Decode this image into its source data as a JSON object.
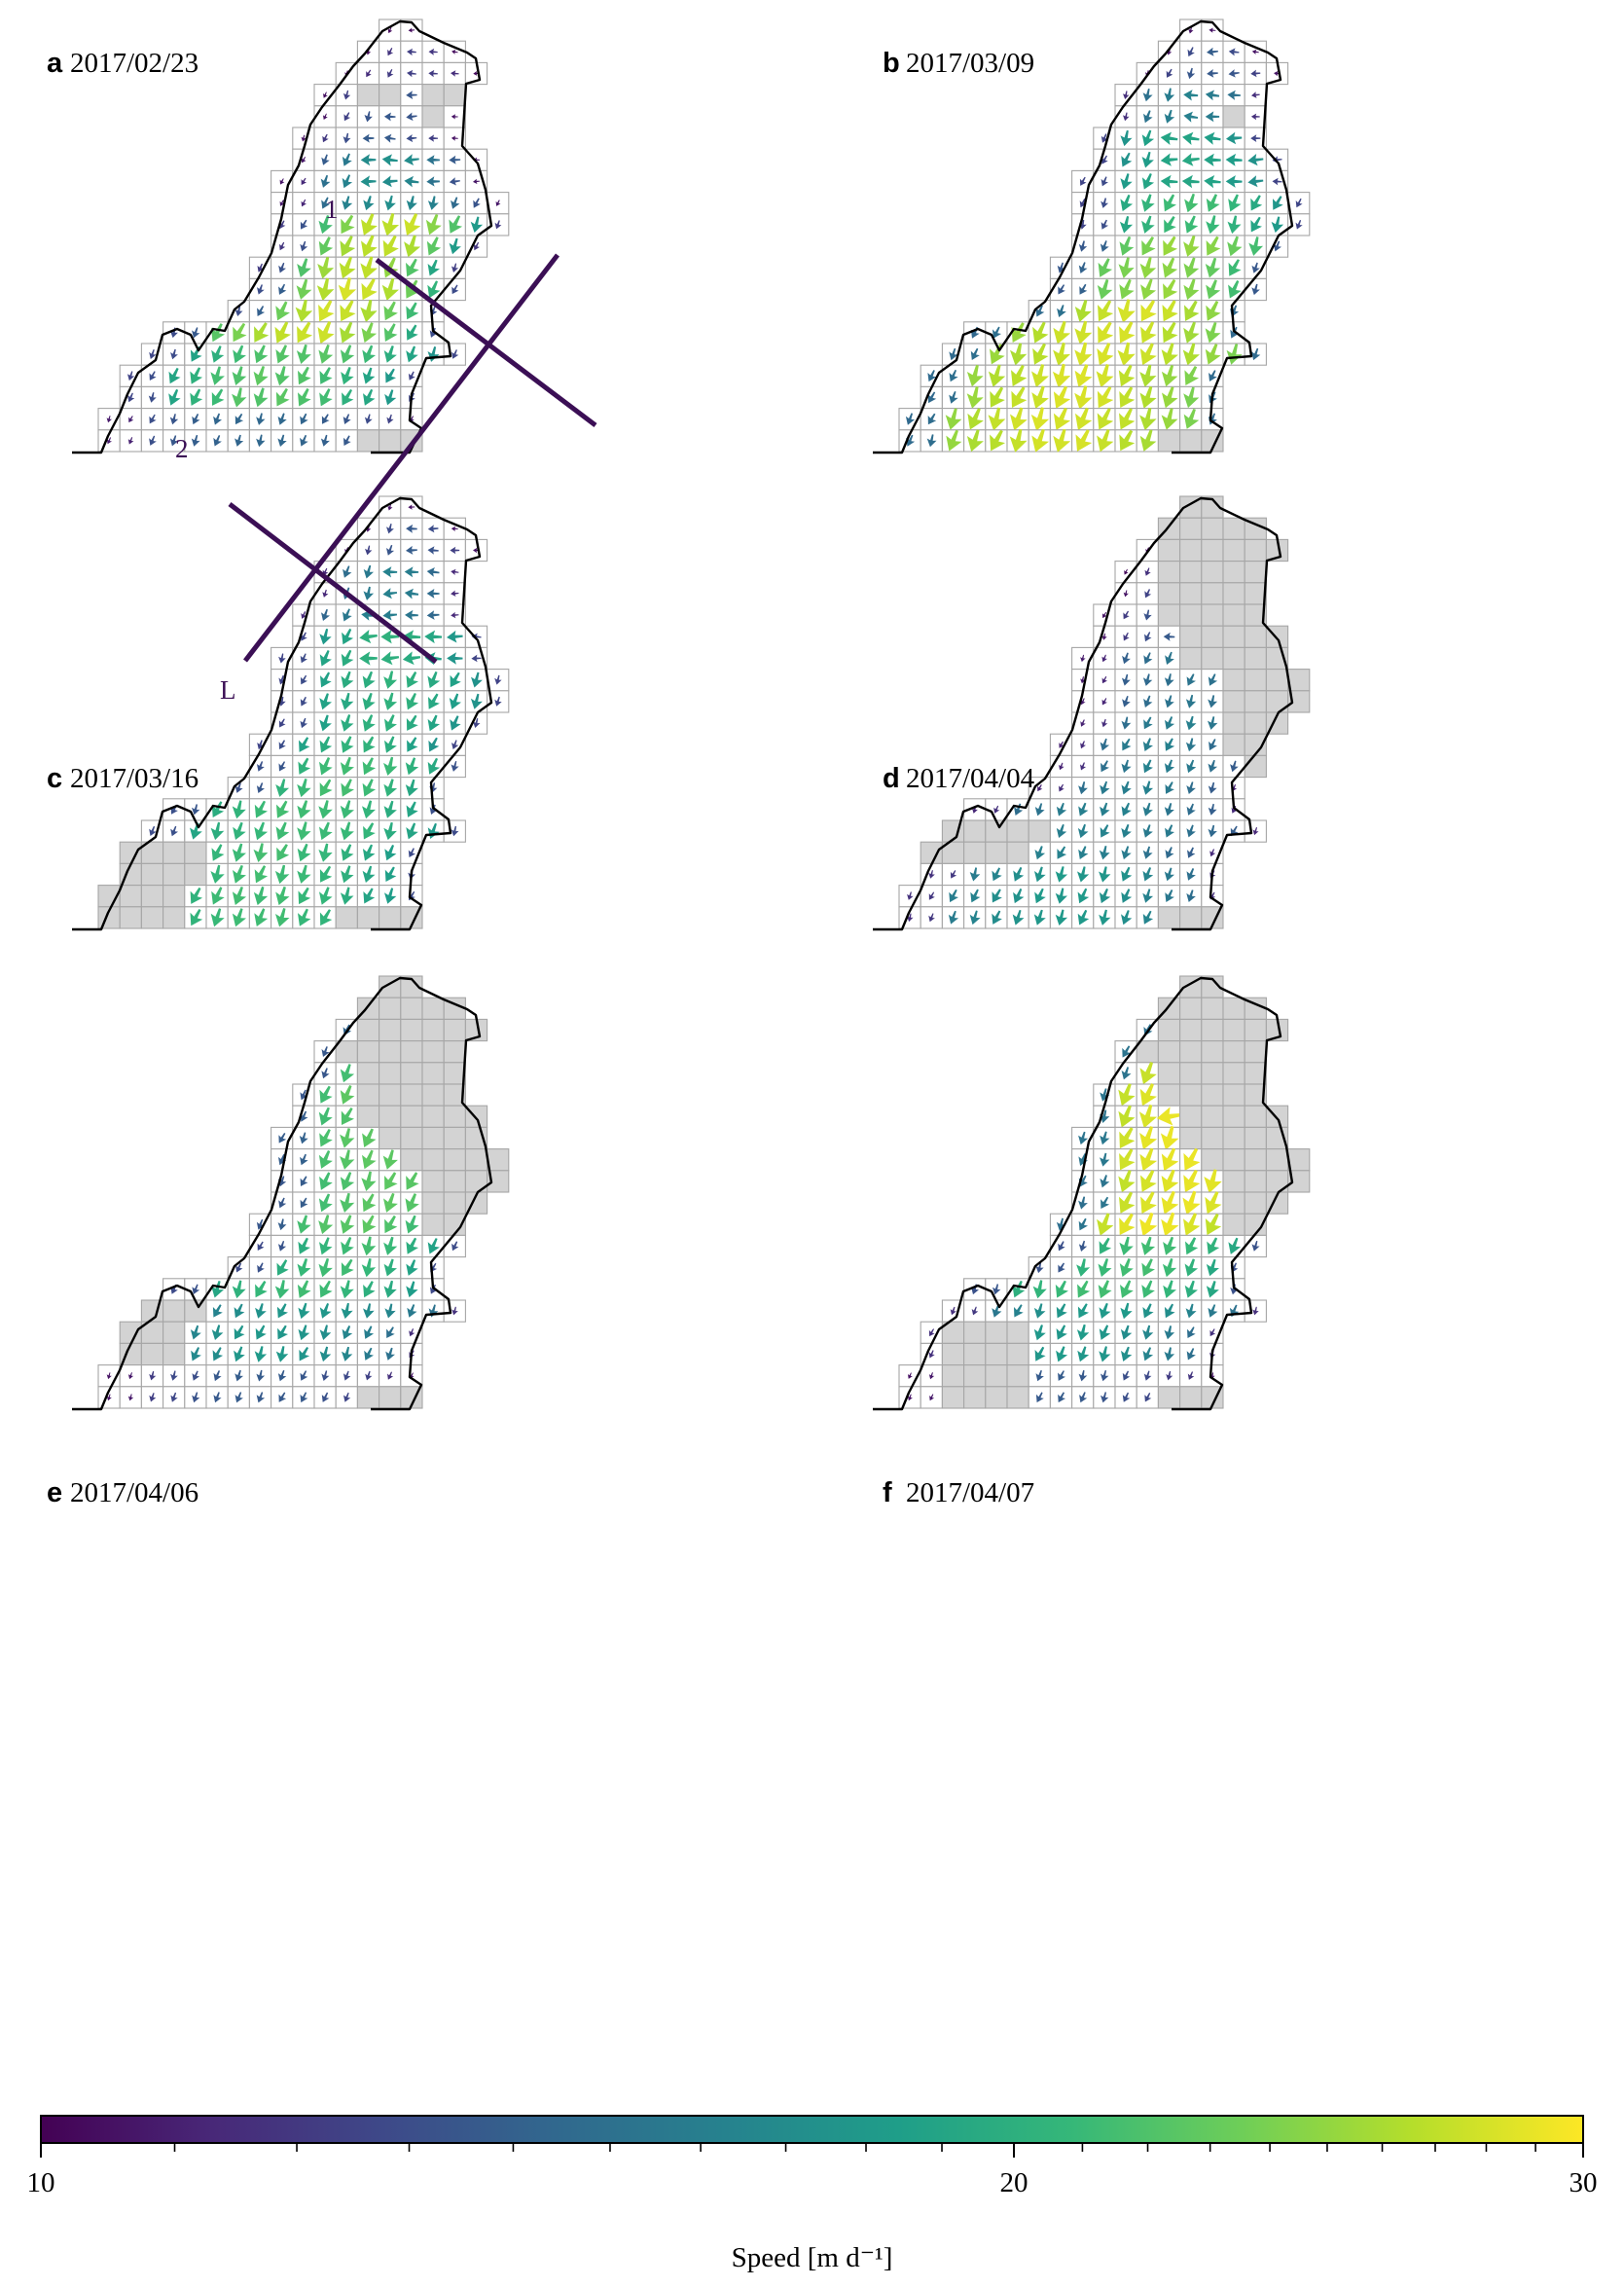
{
  "chart_data": {
    "type": "quiver",
    "panels": [
      {
        "letter": "a",
        "date": "2017/02/23",
        "bands": [
          [
            0.05,
            0.2
          ],
          [
            0.08,
            0.3
          ],
          [
            0.12,
            0.52
          ],
          [
            0.35,
            0.95
          ],
          [
            0.5,
            0.95
          ],
          [
            0.45,
            0.75
          ],
          [
            0.15,
            0.35
          ]
        ]
      },
      {
        "letter": "b",
        "date": "2017/03/09",
        "bands": [
          [
            0.1,
            0.3
          ],
          [
            0.3,
            0.45
          ],
          [
            0.45,
            0.6
          ],
          [
            0.45,
            0.7
          ],
          [
            0.6,
            0.85
          ],
          [
            0.75,
            0.95
          ],
          [
            0.75,
            0.95
          ],
          [
            0.75,
            0.95
          ]
        ]
      },
      {
        "letter": "c",
        "date": "2017/03/16",
        "bands": [
          [
            0.1,
            0.3
          ],
          [
            0.25,
            0.45
          ],
          [
            0.45,
            0.65
          ],
          [
            0.45,
            0.65
          ],
          [
            0.55,
            0.7
          ],
          [
            0.5,
            0.7
          ],
          [
            0.5,
            0.7
          ]
        ]
      },
      {
        "letter": "d",
        "date": "2017/04/04",
        "bands": [
          [
            0.05,
            0.25
          ],
          [
            0.1,
            0.3
          ],
          [
            0.15,
            0.4
          ],
          [
            0.2,
            0.45
          ],
          [
            0.25,
            0.45
          ],
          [
            0.3,
            0.55
          ]
        ]
      },
      {
        "letter": "e",
        "date": "2017/04/06",
        "bands": [
          [
            0.7,
            0.98
          ],
          [
            0.6,
            0.8
          ],
          [
            0.65,
            0.75
          ],
          [
            0.6,
            0.75
          ],
          [
            0.5,
            0.7
          ],
          [
            0.3,
            0.55
          ],
          [
            0.1,
            0.3
          ]
        ]
      },
      {
        "letter": "f",
        "date": "2017/04/07",
        "bands": [
          [
            0.8,
            0.98
          ],
          [
            0.85,
            0.98
          ],
          [
            0.85,
            0.98
          ],
          [
            0.8,
            0.98
          ],
          [
            0.55,
            0.7
          ],
          [
            0.3,
            0.55
          ],
          [
            0.1,
            0.3
          ]
        ]
      }
    ],
    "profiles": [
      "1",
      "2",
      "L"
    ],
    "colorbar": {
      "label": "Speed [m d⁻¹]",
      "min": 10,
      "max": 30,
      "tick_labels": [
        "10",
        "20",
        "30"
      ],
      "colormap": [
        "#440154",
        "#482878",
        "#3e4989",
        "#31688e",
        "#26828e",
        "#1f9e89",
        "#35b779",
        "#6ece58",
        "#b5de2b",
        "#fde725"
      ]
    }
  },
  "colors": {
    "cell_border": "#a6a6a6",
    "masked_cell": "#d3d3d3",
    "outline": "#000000",
    "profile_line": "#3b0f55"
  }
}
